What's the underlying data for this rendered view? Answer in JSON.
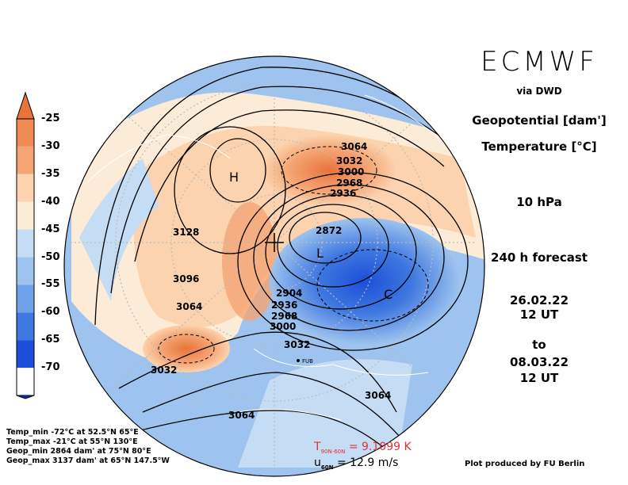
{
  "header": {
    "title": "ECMWF",
    "source": "via DWD",
    "var1": "Geopotential [dam']",
    "var2": "Temperature [°C]",
    "level": "10 hPa",
    "forecast": "240 h forecast",
    "from_date": "26.02.22",
    "from_time": "12 UT",
    "to": "to",
    "to_date": "08.03.22",
    "to_time": "12 UT"
  },
  "colorbar": {
    "labels": [
      "-25",
      "-30",
      "-35",
      "-40",
      "-45",
      "-50",
      "-55",
      "-60",
      "-65",
      "-70"
    ],
    "colors": [
      "#e8743b",
      "#f08a55",
      "#f5a574",
      "#fbd3ae",
      "#fcebd6",
      "#c5dcf5",
      "#9dc3ee",
      "#6fa2e8",
      "#3f78e0",
      "#1b4fd8",
      "#0b34c8"
    ]
  },
  "map": {
    "pressure_labels": [
      "3064",
      "3032",
      "3000",
      "2968",
      "2936",
      "2872",
      "2904",
      "2936",
      "2968",
      "3000",
      "3032",
      "3128",
      "3096",
      "3064",
      "3032",
      "3064",
      "3064"
    ],
    "markers": [
      "H",
      "L",
      "C"
    ],
    "place_label": "FUB"
  },
  "stats": {
    "temp_min": "Temp_min -72°C at 52.5°N 65°E",
    "temp_max": "Temp_max -21°C at 55°N 130°E",
    "geop_min": "Geop_min 2864 dam' at 75°N 80°E",
    "geop_max": "Geop_max 3137 dam' at 65°N 147.5°W"
  },
  "bottom": {
    "t_label": "T",
    "t_sub": "90N-60N",
    "t_value": "= 9.1099 K",
    "u_label": "u",
    "u_sub": "60N",
    "u_value": "= 12.9 m/s",
    "credit": "Plot produced by FU Berlin"
  }
}
